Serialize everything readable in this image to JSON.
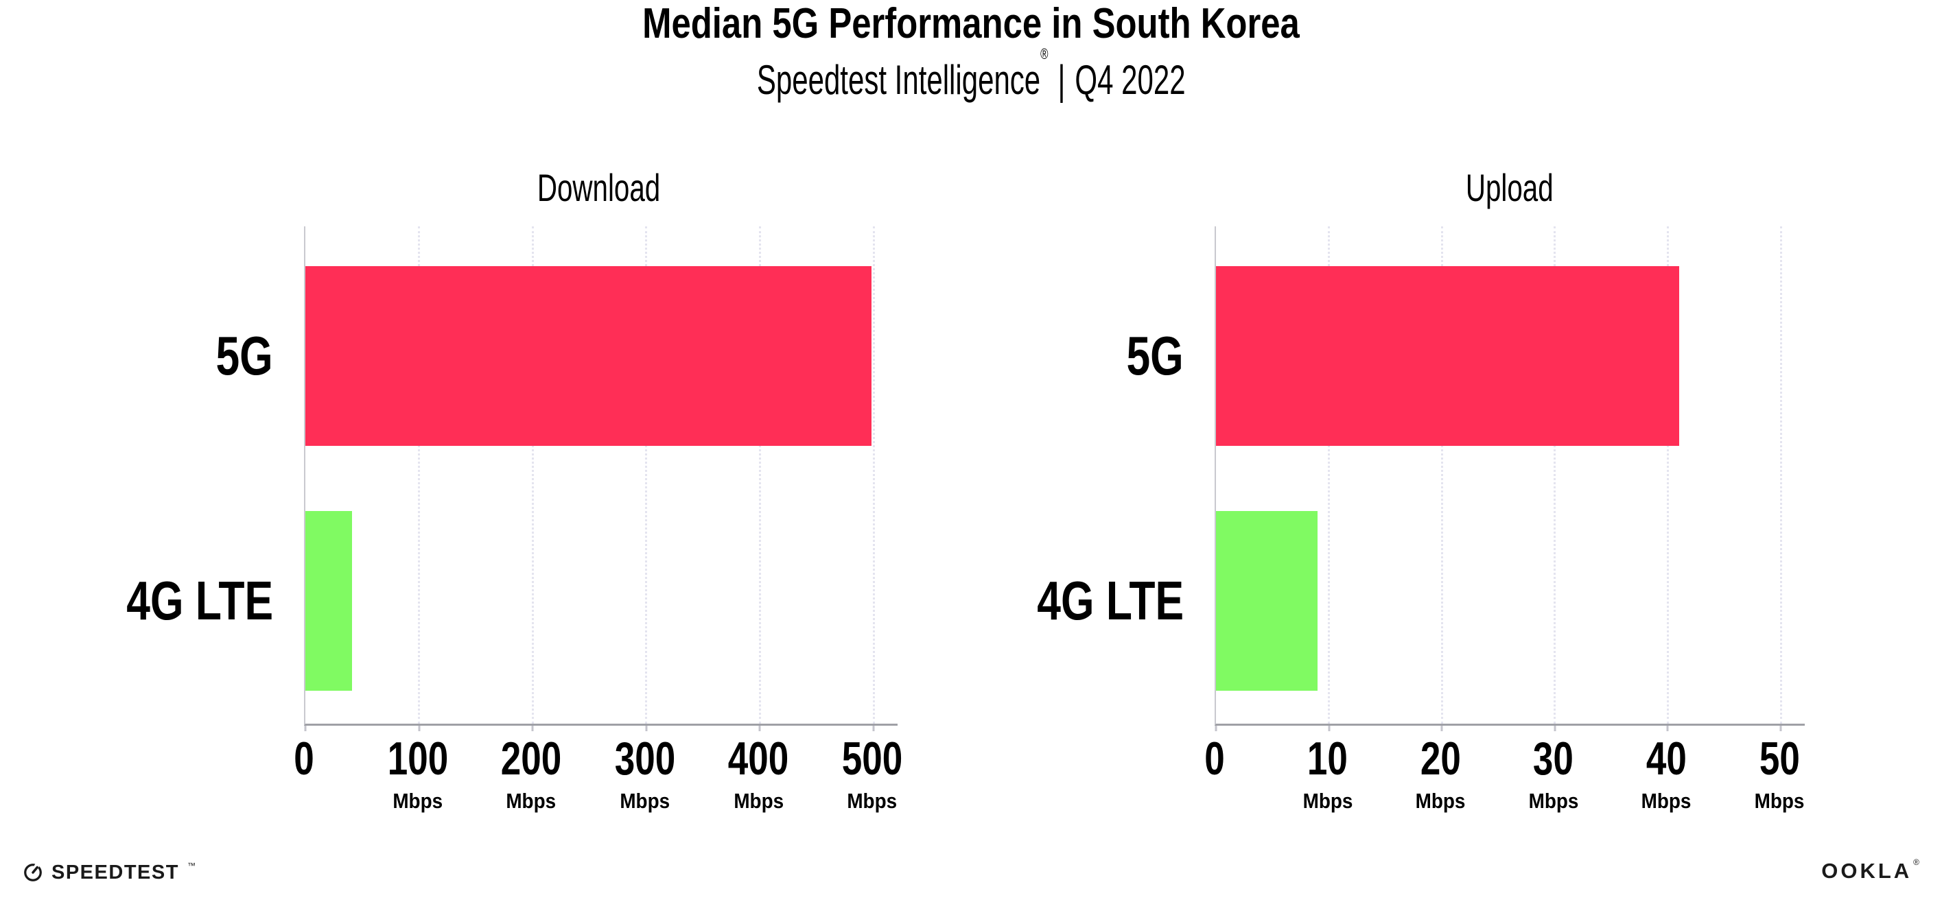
{
  "header": {
    "title": "Median 5G Performance in South Korea",
    "subtitle": {
      "brand": "Speedtest Intelligence",
      "registered": "®",
      "separator": "|",
      "period": "Q4 2022"
    }
  },
  "chart_data": [
    {
      "type": "bar",
      "orientation": "horizontal",
      "title": "Download",
      "categories": [
        "5G",
        "4G LTE"
      ],
      "values": [
        498,
        41
      ],
      "unit": "Mbps",
      "xlabel": "",
      "ylabel": "",
      "xlim": [
        0,
        500
      ],
      "xticks": [
        0,
        100,
        200,
        300,
        400,
        500
      ],
      "grid": "vertical-dotted",
      "legend": "none",
      "bar_colors": [
        "#FF2E56",
        "#80FA62"
      ]
    },
    {
      "type": "bar",
      "orientation": "horizontal",
      "title": "Upload",
      "categories": [
        "5G",
        "4G LTE"
      ],
      "values": [
        41,
        9
      ],
      "unit": "Mbps",
      "xlabel": "",
      "ylabel": "",
      "xlim": [
        0,
        50
      ],
      "xticks": [
        0,
        10,
        20,
        30,
        40,
        50
      ],
      "grid": "vertical-dotted",
      "legend": "none",
      "bar_colors": [
        "#FF2E56",
        "#80FA62"
      ]
    }
  ],
  "colors": {
    "bar_5g": "#FF2E56",
    "bar_4g_lte": "#80FA62",
    "gridline": "#E4E4EF",
    "x_axis_line": "#9FA0A6",
    "y_axis_line": "#C9C9CF",
    "tick": "#C4C4CC",
    "text": "#000000",
    "background": "#FFFFFF"
  },
  "footer": {
    "speedtest_wordmark": "SPEEDTEST",
    "speedtest_trademark": "™",
    "ookla_wordmark": "OOKLA",
    "ookla_registered": "®"
  }
}
